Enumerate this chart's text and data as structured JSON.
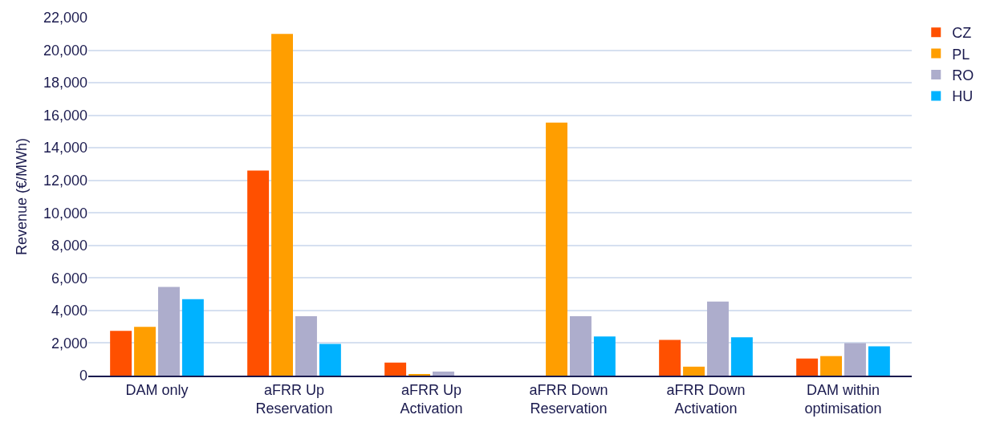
{
  "chart_data": {
    "type": "bar",
    "ylabel": "Revenue (€/MWh)",
    "categories": [
      "DAM only",
      "aFRR Up\nReservation",
      "aFRR Up\nActivation",
      "aFRR Down\nReservation",
      "aFRR Down\nActivation",
      "DAM within\noptimisation"
    ],
    "series": [
      {
        "name": "CZ",
        "color": "#ff5000",
        "values": [
          2750,
          12600,
          800,
          0,
          2200,
          1050
        ]
      },
      {
        "name": "PL",
        "color": "#ff9e00",
        "values": [
          3000,
          21000,
          50,
          15550,
          550,
          1200
        ]
      },
      {
        "name": "RO",
        "color": "#adadcc",
        "values": [
          5450,
          3650,
          250,
          3650,
          4550,
          2000
        ]
      },
      {
        "name": "HU",
        "color": "#00b2ff",
        "values": [
          4700,
          1950,
          0,
          2400,
          2350,
          1800
        ]
      }
    ],
    "ylim": [
      0,
      22000
    ],
    "yticks": [
      {
        "value": 0,
        "label": "0"
      },
      {
        "value": 2000,
        "label": "2,000"
      },
      {
        "value": 4000,
        "label": "4,000"
      },
      {
        "value": 6000,
        "label": "6,000"
      },
      {
        "value": 8000,
        "label": "8,000"
      },
      {
        "value": 10000,
        "label": "10,000"
      },
      {
        "value": 12000,
        "label": "12,000"
      },
      {
        "value": 14000,
        "label": "14,000"
      },
      {
        "value": 16000,
        "label": "16,000"
      },
      {
        "value": 18000,
        "label": "18,000"
      },
      {
        "value": 20000,
        "label": "20,000"
      },
      {
        "value": 22000,
        "label": "22,000"
      }
    ],
    "grid": "y",
    "legend": "right"
  }
}
